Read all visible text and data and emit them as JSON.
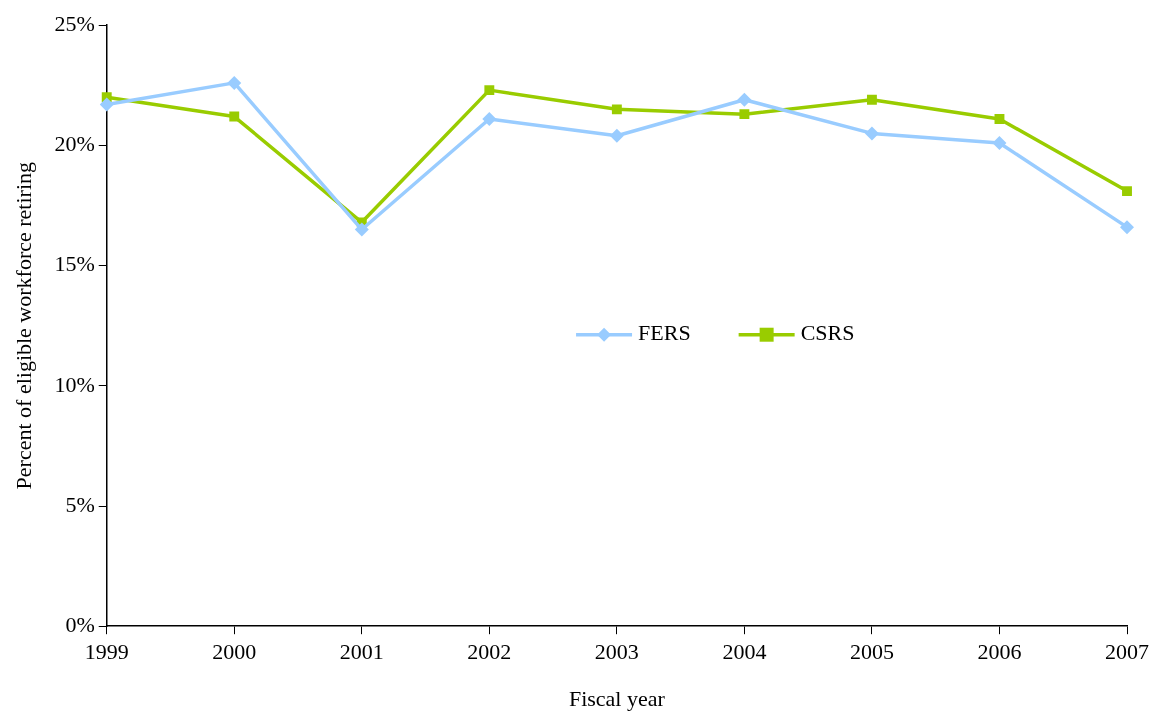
{
  "chart_data": {
    "type": "line",
    "xlabel": "Fiscal year",
    "ylabel": "Percent of eligible workforce retiring",
    "categories": [
      "1999",
      "2000",
      "2001",
      "2002",
      "2003",
      "2004",
      "2005",
      "2006",
      "2007"
    ],
    "series": [
      {
        "name": "FERS",
        "color": "#99ccff",
        "marker": "diamond",
        "values": [
          21.7,
          22.6,
          16.5,
          21.1,
          20.4,
          21.9,
          20.5,
          20.1,
          16.6
        ]
      },
      {
        "name": "CSRS",
        "color": "#99cc00",
        "marker": "square",
        "values": [
          22.0,
          21.2,
          16.8,
          22.3,
          21.5,
          21.3,
          21.9,
          21.1,
          18.1
        ]
      }
    ],
    "ylim": [
      0,
      25
    ],
    "yticks": [
      {
        "value": 0,
        "label": "0%"
      },
      {
        "value": 5,
        "label": "5%"
      },
      {
        "value": 10,
        "label": "10%"
      },
      {
        "value": 15,
        "label": "15%"
      },
      {
        "value": 20,
        "label": "20%"
      },
      {
        "value": 25,
        "label": "25%"
      }
    ],
    "grid": false,
    "legend": "center",
    "line_style": "solid"
  }
}
